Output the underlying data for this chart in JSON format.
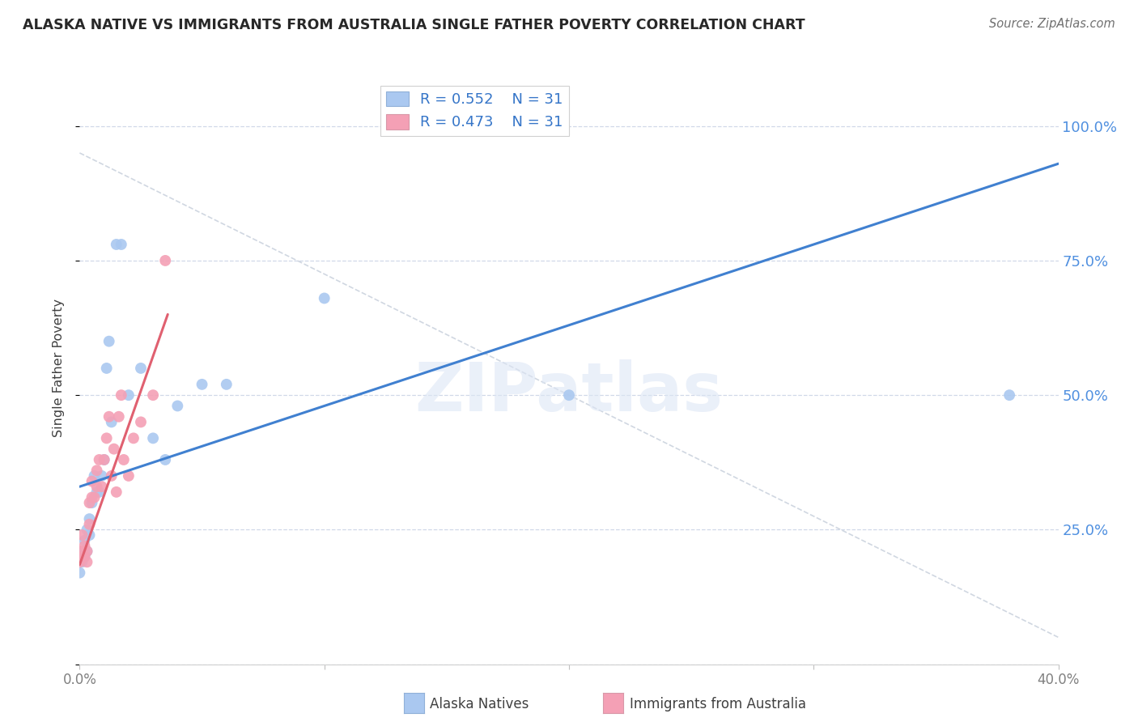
{
  "title": "ALASKA NATIVE VS IMMIGRANTS FROM AUSTRALIA SINGLE FATHER POVERTY CORRELATION CHART",
  "source": "Source: ZipAtlas.com",
  "ylabel": "Single Father Poverty",
  "legend_r_blue": "0.552",
  "legend_n_blue": "31",
  "legend_r_pink": "0.473",
  "legend_n_pink": "31",
  "watermark": "ZIPatlas",
  "blue_scatter_color": "#aac8f0",
  "pink_scatter_color": "#f4a0b5",
  "blue_line_color": "#4080d0",
  "pink_line_color": "#e06070",
  "dashed_line_color": "#c8d0dc",
  "background_color": "#ffffff",
  "grid_color": "#d0d8e8",
  "right_tick_color": "#5090e0",
  "xlim": [
    0.0,
    0.4
  ],
  "ylim": [
    0.0,
    1.1
  ],
  "alaska_x": [
    0.0,
    0.001,
    0.001,
    0.002,
    0.002,
    0.003,
    0.003,
    0.004,
    0.004,
    0.005,
    0.006,
    0.007,
    0.008,
    0.009,
    0.01,
    0.011,
    0.012,
    0.013,
    0.015,
    0.017,
    0.02,
    0.025,
    0.03,
    0.035,
    0.04,
    0.05,
    0.06,
    0.1,
    0.13,
    0.2,
    0.38
  ],
  "alaska_y": [
    0.17,
    0.19,
    0.21,
    0.2,
    0.23,
    0.21,
    0.25,
    0.24,
    0.27,
    0.3,
    0.35,
    0.32,
    0.32,
    0.35,
    0.38,
    0.55,
    0.6,
    0.45,
    0.78,
    0.78,
    0.5,
    0.55,
    0.42,
    0.38,
    0.48,
    0.52,
    0.52,
    0.68,
    1.0,
    0.5,
    0.5
  ],
  "aus_x": [
    0.0,
    0.001,
    0.001,
    0.001,
    0.002,
    0.002,
    0.003,
    0.003,
    0.004,
    0.004,
    0.005,
    0.005,
    0.006,
    0.007,
    0.007,
    0.008,
    0.009,
    0.01,
    0.011,
    0.012,
    0.013,
    0.014,
    0.015,
    0.016,
    0.017,
    0.018,
    0.02,
    0.022,
    0.025,
    0.03,
    0.035
  ],
  "aus_y": [
    0.19,
    0.2,
    0.21,
    0.24,
    0.2,
    0.22,
    0.19,
    0.21,
    0.26,
    0.3,
    0.31,
    0.34,
    0.31,
    0.33,
    0.36,
    0.38,
    0.33,
    0.38,
    0.42,
    0.46,
    0.35,
    0.4,
    0.32,
    0.46,
    0.5,
    0.38,
    0.35,
    0.42,
    0.45,
    0.5,
    0.75
  ],
  "blue_line_x": [
    0.0,
    0.4
  ],
  "blue_line_y": [
    0.33,
    0.93
  ],
  "pink_line_x": [
    0.0,
    0.036
  ],
  "pink_line_y": [
    0.185,
    0.65
  ],
  "dash_line_x": [
    0.0,
    0.4
  ],
  "dash_line_y": [
    0.95,
    0.05
  ]
}
